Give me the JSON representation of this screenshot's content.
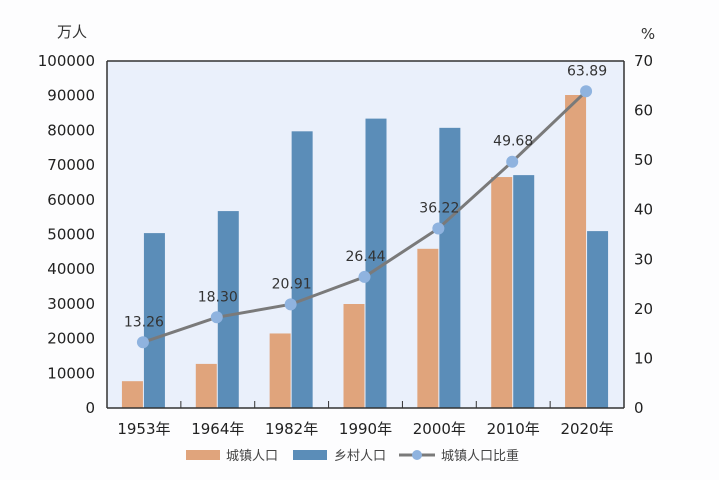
{
  "chart_data": {
    "type": "bar",
    "title": "",
    "categories": [
      "1953年",
      "1964年",
      "1982年",
      "1990年",
      "2000年",
      "2010年",
      "2020年"
    ],
    "left_axis": {
      "unit": "万人",
      "ylim": [
        0,
        100000
      ],
      "ticks": [
        0,
        10000,
        20000,
        30000,
        40000,
        50000,
        60000,
        70000,
        80000,
        90000,
        100000
      ]
    },
    "right_axis": {
      "unit": "%",
      "ylim": [
        0,
        70
      ],
      "ticks": [
        0,
        10,
        20,
        30,
        40,
        50,
        60,
        70
      ]
    },
    "series": [
      {
        "name": "城镇人口",
        "type": "bar",
        "axis": "left",
        "color": "#e0a47c",
        "values": [
          7726,
          12710,
          21480,
          29971,
          45877,
          66557,
          90199
        ]
      },
      {
        "name": "乡村人口",
        "type": "bar",
        "axis": "left",
        "color": "#5b8db8",
        "values": [
          50402,
          56748,
          79736,
          83397,
          80739,
          67113,
          50979
        ]
      },
      {
        "name": "城镇人口比重",
        "type": "line",
        "axis": "right",
        "color": "#7a7a7a",
        "marker_color": "#8fb3df",
        "values": [
          13.26,
          18.3,
          20.91,
          26.44,
          36.22,
          49.68,
          63.89
        ],
        "labels": [
          "13.26",
          "18.30",
          "20.91",
          "26.44",
          "36.22",
          "49.68",
          "63.89"
        ]
      }
    ],
    "legend_position": "bottom",
    "grid": false,
    "plot_background": "#eaf0fb"
  }
}
